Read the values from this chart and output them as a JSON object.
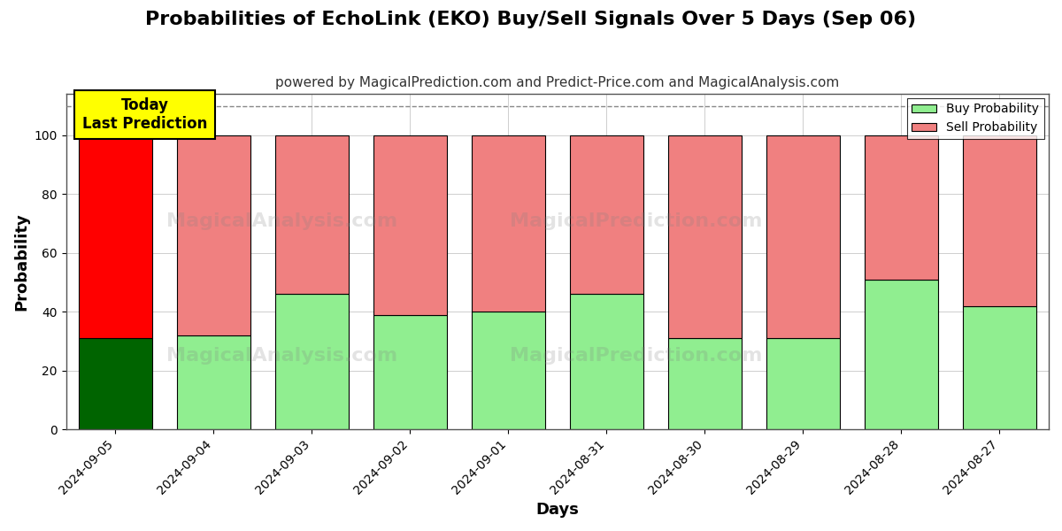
{
  "title": "Probabilities of EchoLink (EKO) Buy/Sell Signals Over 5 Days (Sep 06)",
  "subtitle": "powered by MagicalPrediction.com and Predict-Price.com and MagicalAnalysis.com",
  "xlabel": "Days",
  "ylabel": "Probability",
  "categories": [
    "2024-09-05",
    "2024-09-04",
    "2024-09-03",
    "2024-09-02",
    "2024-09-01",
    "2024-08-31",
    "2024-08-30",
    "2024-08-29",
    "2024-08-28",
    "2024-08-27"
  ],
  "buy_values": [
    31,
    32,
    46,
    39,
    40,
    46,
    31,
    31,
    51,
    42
  ],
  "sell_values": [
    69,
    68,
    54,
    61,
    60,
    54,
    69,
    69,
    49,
    58
  ],
  "today_buy_color": "#006400",
  "today_sell_color": "#ff0000",
  "buy_color": "#90ee90",
  "sell_color": "#f08080",
  "today_label_bg": "#ffff00",
  "today_label_text": "Today\nLast Prediction",
  "legend_buy": "Buy Probability",
  "legend_sell": "Sell Probability",
  "ylim": [
    0,
    114
  ],
  "yticks": [
    0,
    20,
    40,
    60,
    80,
    100
  ],
  "dashed_line_y": 110,
  "watermark1": "MagicalAnalysis.com",
  "watermark2": "MagicalPrediction.com",
  "background_color": "#ffffff",
  "grid_color": "#aaaaaa",
  "title_fontsize": 16,
  "subtitle_fontsize": 11,
  "axis_label_fontsize": 13,
  "tick_fontsize": 10,
  "bar_width": 0.75
}
